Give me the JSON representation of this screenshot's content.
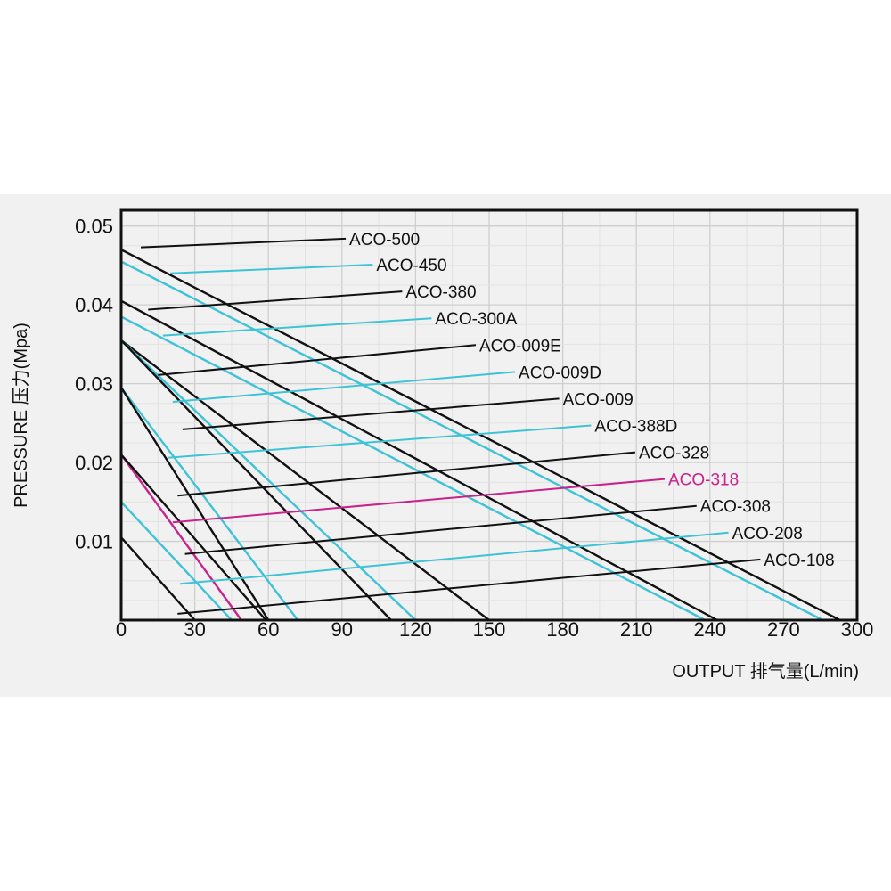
{
  "chart_data": {
    "type": "line",
    "title": "",
    "xlabel": "OUTPUT 排气量(L/min)",
    "ylabel": "PRESSURE 压力(Mpa)",
    "xlim": [
      0,
      300
    ],
    "ylim": [
      0,
      0.052
    ],
    "xticks": [
      0,
      30,
      60,
      90,
      120,
      150,
      180,
      210,
      240,
      270,
      300
    ],
    "yticks": [
      0.01,
      0.02,
      0.03,
      0.04,
      0.05
    ],
    "ytick_labels": [
      "0.01",
      "0.02",
      "0.03",
      "0.04",
      "0.05"
    ],
    "grid": true,
    "x_minor_step": 15,
    "y_minor_step": 0.0025,
    "legend": "none",
    "colors": {
      "black": "#111111",
      "cyan": "#3ec3d6",
      "magenta": "#c8238c"
    },
    "series": [
      {
        "name": "ACO-500",
        "color": "black",
        "x": [
          0,
          293
        ],
        "y": [
          0.047,
          0
        ],
        "label_x": 93,
        "label_y": 0.0484,
        "pointer_x": 8,
        "pointer_y": 0.0473
      },
      {
        "name": "ACO-450",
        "color": "cyan",
        "x": [
          0,
          286
        ],
        "y": [
          0.0455,
          0
        ],
        "label_x": 104,
        "label_y": 0.0451,
        "pointer_x": 20,
        "pointer_y": 0.044
      },
      {
        "name": "ACO-380",
        "color": "black",
        "x": [
          0,
          243
        ],
        "y": [
          0.0405,
          0
        ],
        "label_x": 116,
        "label_y": 0.0417,
        "pointer_x": 11,
        "pointer_y": 0.0394
      },
      {
        "name": "ACO-300A",
        "color": "cyan",
        "x": [
          0,
          238
        ],
        "y": [
          0.0385,
          0
        ],
        "label_x": 128,
        "label_y": 0.0383,
        "pointer_x": 17,
        "pointer_y": 0.0361
      },
      {
        "name": "ACO-009E",
        "color": "black",
        "x": [
          0,
          150
        ],
        "y": [
          0.0355,
          0
        ],
        "label_x": 146,
        "label_y": 0.0349,
        "pointer_x": 15,
        "pointer_y": 0.0311
      },
      {
        "name": "ACO-009D",
        "color": "cyan",
        "x": [
          0,
          120
        ],
        "y": [
          0.0355,
          0
        ],
        "label_x": 162,
        "label_y": 0.0315,
        "pointer_x": 21,
        "pointer_y": 0.0277
      },
      {
        "name": "ACO-009",
        "color": "black",
        "x": [
          0,
          110
        ],
        "y": [
          0.0355,
          0
        ],
        "label_x": 180,
        "label_y": 0.0281,
        "pointer_x": 25,
        "pointer_y": 0.0242
      },
      {
        "name": "ACO-388D",
        "color": "cyan",
        "x": [
          0,
          72
        ],
        "y": [
          0.0295,
          0
        ],
        "label_x": 193,
        "label_y": 0.0247,
        "pointer_x": 19,
        "pointer_y": 0.0206
      },
      {
        "name": "ACO-328",
        "color": "black",
        "x": [
          0,
          60
        ],
        "y": [
          0.0295,
          0
        ],
        "label_x": 211,
        "label_y": 0.0213,
        "pointer_x": 23,
        "pointer_y": 0.0158
      },
      {
        "name": "ACO-318",
        "color": "magenta",
        "x": [
          0,
          49
        ],
        "y": [
          0.021,
          0
        ],
        "label_x": 223,
        "label_y": 0.0179,
        "pointer_x": 21,
        "pointer_y": 0.0124
      },
      {
        "name": "ACO-308",
        "color": "black",
        "x": [
          0,
          59
        ],
        "y": [
          0.021,
          0
        ],
        "label_x": 236,
        "label_y": 0.0145,
        "pointer_x": 26,
        "pointer_y": 0.0084
      },
      {
        "name": "ACO-208",
        "color": "cyan",
        "x": [
          0,
          45
        ],
        "y": [
          0.015,
          0
        ],
        "label_x": 249,
        "label_y": 0.0111,
        "pointer_x": 24,
        "pointer_y": 0.0046
      },
      {
        "name": "ACO-108",
        "color": "black",
        "x": [
          0,
          30
        ],
        "y": [
          0.0105,
          0
        ],
        "label_x": 262,
        "label_y": 0.0077,
        "pointer_x": 23,
        "pointer_y": 0.0008
      }
    ]
  }
}
